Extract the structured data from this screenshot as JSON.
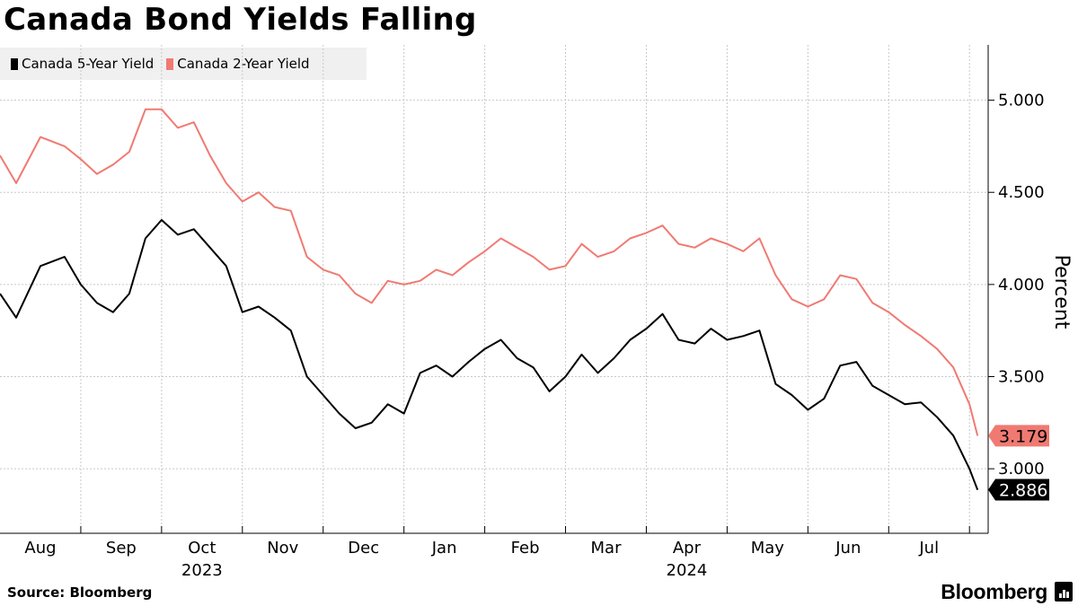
{
  "title": "Canada Bond Yields Falling",
  "source": "Source: Bloomberg",
  "brand": "Bloomberg",
  "colors": {
    "five_year": "#000000",
    "two_year": "#f07a72",
    "grid": "#c8c8c8",
    "legend_bg": "#f0f0f0"
  },
  "chart_data": {
    "type": "line",
    "title": "Canada Bond Yields Falling",
    "ylabel": "Percent",
    "xlabel": "",
    "ylim": [
      2.65,
      5.3
    ],
    "yticks": [
      3.0,
      3.5,
      4.0,
      4.5,
      5.0
    ],
    "ytick_labels": [
      "3.000",
      "3.500",
      "4.000",
      "4.500",
      "5.000"
    ],
    "x_range": [
      0,
      12.12
    ],
    "months": [
      {
        "label": "Aug",
        "year": ""
      },
      {
        "label": "Sep",
        "year": ""
      },
      {
        "label": "Oct",
        "year": "2023"
      },
      {
        "label": "Nov",
        "year": ""
      },
      {
        "label": "Dec",
        "year": ""
      },
      {
        "label": "Jan",
        "year": ""
      },
      {
        "label": "Feb",
        "year": ""
      },
      {
        "label": "Mar",
        "year": ""
      },
      {
        "label": "Apr",
        "year": "2024"
      },
      {
        "label": "May",
        "year": ""
      },
      {
        "label": "Jun",
        "year": ""
      },
      {
        "label": "Jul",
        "year": ""
      }
    ],
    "series": [
      {
        "name": "Canada 5-Year Yield",
        "color": "#000000",
        "last_value_label": "2.886",
        "x": [
          0,
          0.2,
          0.5,
          0.8,
          1.0,
          1.2,
          1.4,
          1.6,
          1.8,
          2.0,
          2.2,
          2.4,
          2.6,
          2.8,
          3.0,
          3.2,
          3.4,
          3.6,
          3.8,
          4.0,
          4.2,
          4.4,
          4.6,
          4.8,
          5.0,
          5.2,
          5.4,
          5.6,
          5.8,
          6.0,
          6.2,
          6.4,
          6.6,
          6.8,
          7.0,
          7.2,
          7.4,
          7.6,
          7.8,
          8.0,
          8.2,
          8.4,
          8.6,
          8.8,
          9.0,
          9.2,
          9.4,
          9.6,
          9.8,
          10.0,
          10.2,
          10.4,
          10.6,
          10.8,
          11.0,
          11.2,
          11.4,
          11.6,
          11.8,
          12.0,
          12.1
        ],
        "values": [
          3.95,
          3.82,
          4.1,
          4.15,
          4.0,
          3.9,
          3.85,
          3.95,
          4.25,
          4.35,
          4.27,
          4.3,
          4.2,
          4.1,
          3.85,
          3.88,
          3.82,
          3.75,
          3.5,
          3.4,
          3.3,
          3.22,
          3.25,
          3.35,
          3.3,
          3.52,
          3.56,
          3.5,
          3.58,
          3.65,
          3.7,
          3.6,
          3.55,
          3.42,
          3.5,
          3.62,
          3.52,
          3.6,
          3.7,
          3.76,
          3.84,
          3.7,
          3.68,
          3.76,
          3.7,
          3.72,
          3.75,
          3.46,
          3.4,
          3.32,
          3.38,
          3.56,
          3.58,
          3.45,
          3.4,
          3.35,
          3.36,
          3.28,
          3.18,
          3.0,
          2.886
        ]
      },
      {
        "name": "Canada 2-Year Yield",
        "color": "#f07a72",
        "last_value_label": "3.179",
        "x": [
          0,
          0.2,
          0.5,
          0.8,
          1.0,
          1.2,
          1.4,
          1.6,
          1.8,
          2.0,
          2.2,
          2.4,
          2.6,
          2.8,
          3.0,
          3.2,
          3.4,
          3.6,
          3.8,
          4.0,
          4.2,
          4.4,
          4.6,
          4.8,
          5.0,
          5.2,
          5.4,
          5.6,
          5.8,
          6.0,
          6.2,
          6.4,
          6.6,
          6.8,
          7.0,
          7.2,
          7.4,
          7.6,
          7.8,
          8.0,
          8.2,
          8.4,
          8.6,
          8.8,
          9.0,
          9.2,
          9.4,
          9.6,
          9.8,
          10.0,
          10.2,
          10.4,
          10.6,
          10.8,
          11.0,
          11.2,
          11.4,
          11.6,
          11.8,
          12.0,
          12.1
        ],
        "values": [
          4.7,
          4.55,
          4.8,
          4.75,
          4.68,
          4.6,
          4.65,
          4.72,
          4.95,
          4.95,
          4.85,
          4.88,
          4.7,
          4.55,
          4.45,
          4.5,
          4.42,
          4.4,
          4.15,
          4.08,
          4.05,
          3.95,
          3.9,
          4.02,
          4.0,
          4.02,
          4.08,
          4.05,
          4.12,
          4.18,
          4.25,
          4.2,
          4.15,
          4.08,
          4.1,
          4.22,
          4.15,
          4.18,
          4.25,
          4.28,
          4.32,
          4.22,
          4.2,
          4.25,
          4.22,
          4.18,
          4.25,
          4.05,
          3.92,
          3.88,
          3.92,
          4.05,
          4.03,
          3.9,
          3.85,
          3.78,
          3.72,
          3.65,
          3.55,
          3.35,
          3.179
        ]
      }
    ]
  }
}
